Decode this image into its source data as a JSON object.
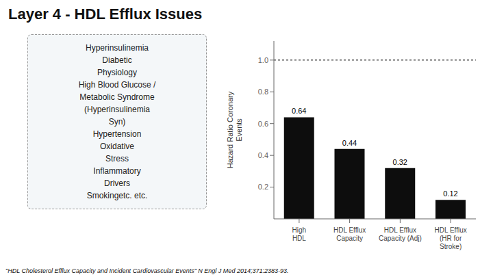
{
  "chart_data": {
    "type": "bar",
    "title": "Layer 4 - HDL Efflux Issues",
    "categories": [
      "High\nHDL",
      "HDL Efflux\nCapacity",
      "HDL Efflux\nCapacity (Adj)",
      "HDL Efflux\n(HR for\nStroke)"
    ],
    "values": [
      0.64,
      0.44,
      0.32,
      0.12
    ],
    "color": "#0d0d0d",
    "ylabel": "Hazard Ratio Coronary\nEvents",
    "ylim": [
      0,
      1.12
    ],
    "yticks": [
      0.2,
      0.4,
      0.6,
      0.8,
      {
        "value": 1.0,
        "label": "1.0"
      }
    ],
    "reference_line": 1.0,
    "data_labels": true,
    "grid": false,
    "annotations": [
      "Hyperinsulinemia",
      "Diabetic",
      "Physiology",
      "High Blood Glucose /",
      "Metabolic Syndrome",
      "(Hyperinsulinemia",
      "Syn)",
      "Hypertension",
      "Oxidative",
      "Stress",
      "Inflammatory",
      "Drivers",
      "Smokingetc. etc."
    ],
    "footnote": "\"HDL Cholesterol Efflux Capacity and Incident Cardiovascular Events\" N Engl J Med 2014;371:2383-93."
  }
}
